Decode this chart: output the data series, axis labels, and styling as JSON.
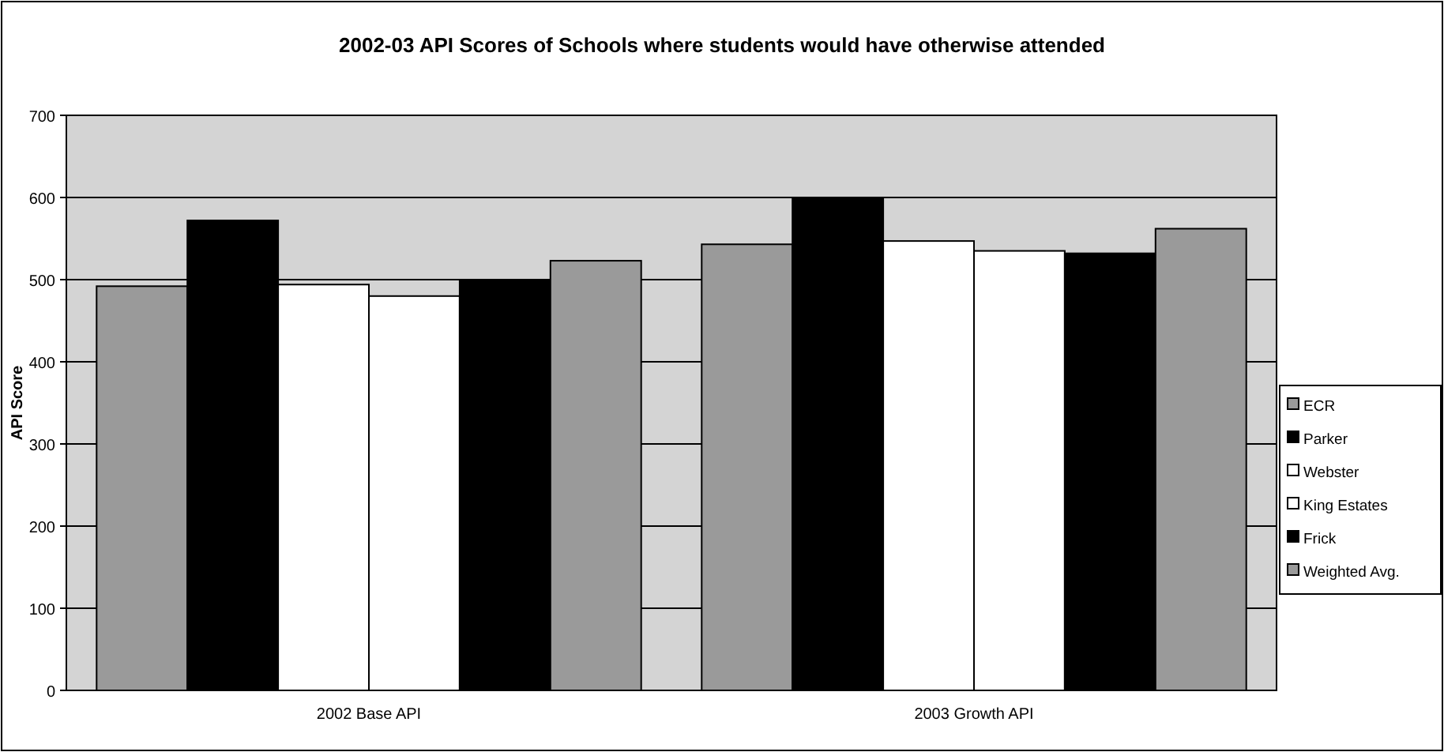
{
  "chart_data": {
    "type": "bar",
    "title": "2002-03 API Scores of Schools where students would have otherwise attended",
    "ylabel": "API Score",
    "categories": [
      "2002 Base API",
      "2003 Growth API"
    ],
    "series": [
      {
        "name": "ECR",
        "color": "#9a9a9a",
        "values": [
          492,
          543
        ]
      },
      {
        "name": "Parker",
        "color": "#000000",
        "values": [
          572,
          600
        ]
      },
      {
        "name": "Webster",
        "color": "#ffffff",
        "values": [
          494,
          547
        ]
      },
      {
        "name": "King Estates",
        "color": "#ffffff",
        "values": [
          480,
          535
        ]
      },
      {
        "name": "Frick",
        "color": "#000000",
        "values": [
          500,
          532
        ]
      },
      {
        "name": "Weighted Avg.",
        "color": "#9a9a9a",
        "values": [
          523,
          562
        ]
      }
    ],
    "ylim": [
      0,
      700
    ],
    "yticks": [
      0,
      100,
      200,
      300,
      400,
      500,
      600,
      700
    ],
    "grid": "y",
    "legend": "right"
  }
}
